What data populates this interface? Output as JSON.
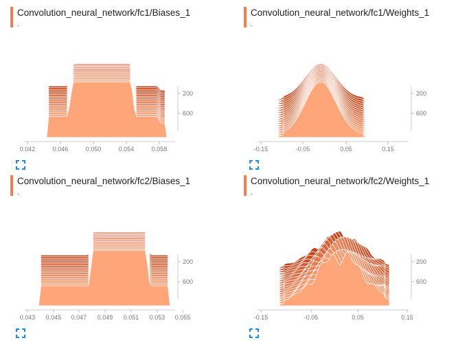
{
  "theme": {
    "accent": "#f57c4c",
    "ridge_dark": "#c5431a",
    "ridge_light": "#ffa57a"
  },
  "cards": [
    {
      "title": "Convolution_neural_network/fc1/Biases_1",
      "subtitle": ".",
      "x_ticks": [
        "0.042",
        "0.046",
        "0.050",
        "0.054",
        "0.058"
      ],
      "y_ticks": [
        "200",
        "600"
      ],
      "shape": "step",
      "expand_icon": "fullscreen-icon"
    },
    {
      "title": "Convolution_neural_network/fc1/Weights_1",
      "subtitle": ".",
      "x_ticks": [
        "-0.15",
        "-0.05",
        "0.05",
        "0.15"
      ],
      "y_ticks": [
        "200",
        "600"
      ],
      "shape": "bell",
      "expand_icon": "fullscreen-icon"
    },
    {
      "title": "Convolution_neural_network/fc2/Biases_1",
      "subtitle": ".",
      "x_ticks": [
        "0.043",
        "0.045",
        "0.047",
        "0.049",
        "0.051",
        "0.053",
        "0.055"
      ],
      "y_ticks": [
        "200",
        "600"
      ],
      "shape": "plateau",
      "expand_icon": "fullscreen-icon"
    },
    {
      "title": "Convolution_neural_network/fc2/Weights_1",
      "subtitle": ".",
      "x_ticks": [
        "-0.15",
        "-0.05",
        "0.05",
        "0.15"
      ],
      "y_ticks": [
        "200",
        "600"
      ],
      "shape": "jagged",
      "expand_icon": "fullscreen-icon"
    }
  ]
}
